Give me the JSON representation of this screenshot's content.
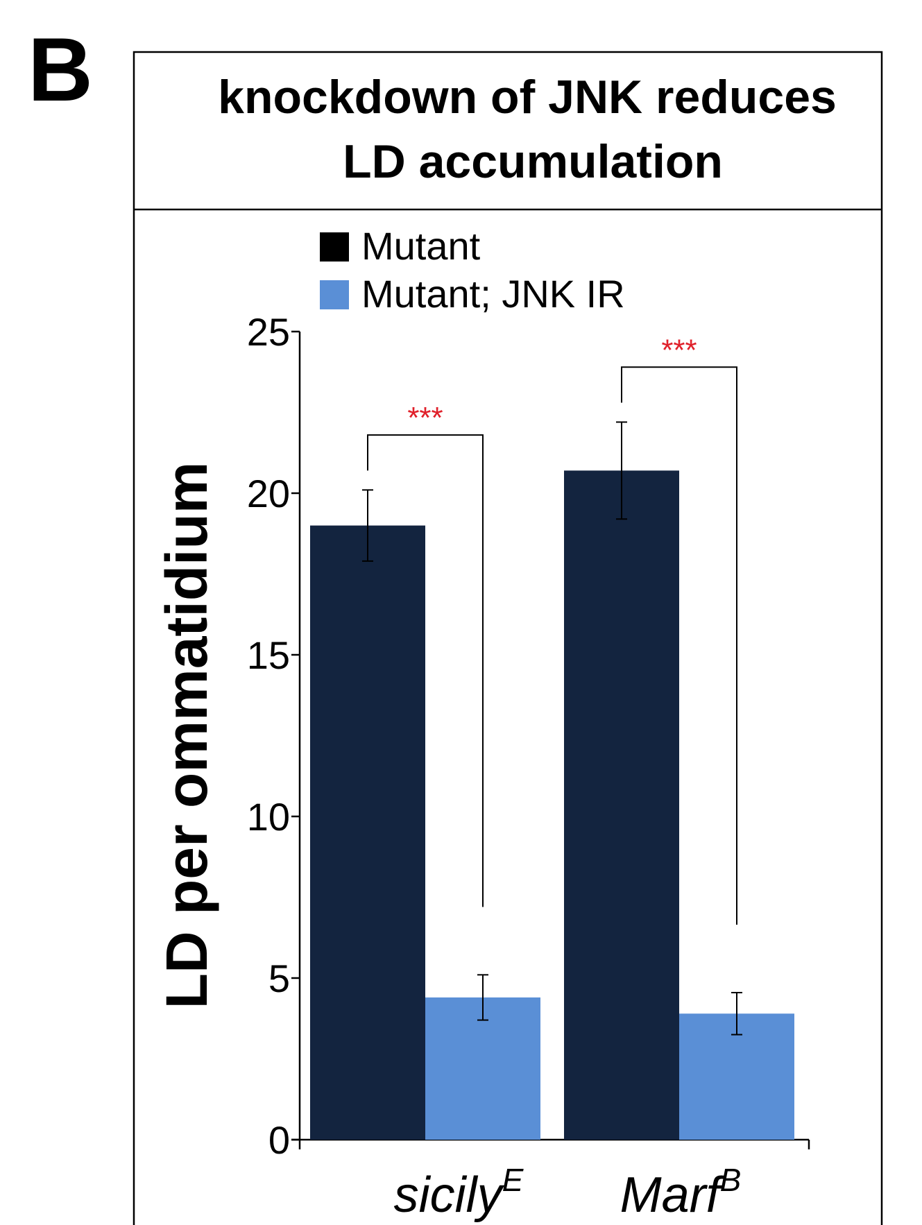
{
  "panel_letter": "B",
  "chart_data": {
    "type": "bar",
    "title_lines": [
      "knockdown of JNK reduces",
      "LD accumulation"
    ],
    "ylabel": "LD per ommatidium",
    "xlabel": "",
    "ylim": [
      0,
      25
    ],
    "yticks": [
      0,
      5,
      10,
      15,
      20,
      25
    ],
    "grid": false,
    "legend_position": "top-left",
    "categories": [
      {
        "base": "sicily",
        "sup": "E"
      },
      {
        "base": "Marf",
        "sup": "B"
      }
    ],
    "series": [
      {
        "name": "Mutant",
        "color": "#13243f",
        "values": [
          19.0,
          20.7
        ],
        "errors": [
          1.1,
          1.5
        ],
        "legend_color": "#000000"
      },
      {
        "name": "Mutant; JNK IR",
        "color": "#5a8fd6",
        "values": [
          4.4,
          3.9
        ],
        "errors": [
          0.7,
          0.65
        ],
        "legend_color": "#5a8fd6"
      }
    ],
    "significance": [
      {
        "category": 0,
        "label": "***",
        "color": "#e0202a"
      },
      {
        "category": 1,
        "label": "***",
        "color": "#e0202a"
      }
    ]
  }
}
